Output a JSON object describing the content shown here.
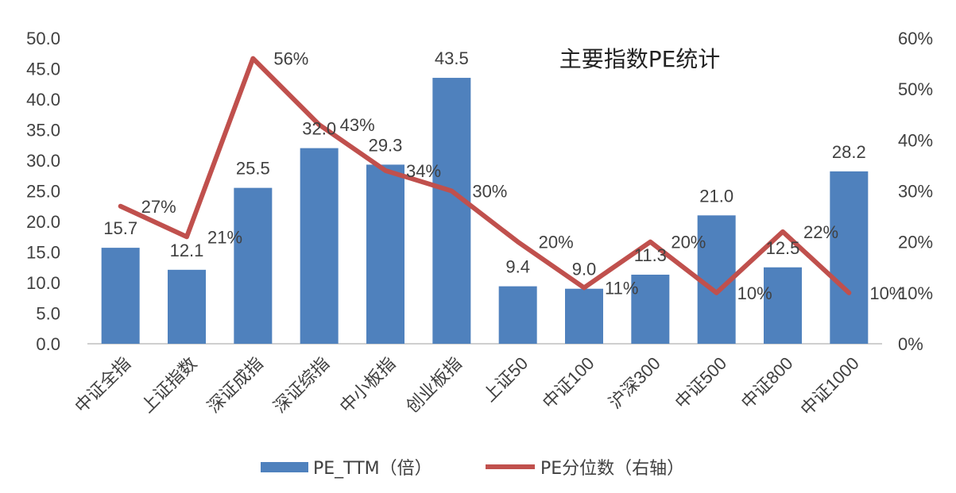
{
  "chart_data": {
    "type": "bar+line",
    "title": "主要指数PE统计",
    "categories": [
      "中证全指",
      "上证指数",
      "深证成指",
      "深证综指",
      "中小板指",
      "创业板指",
      "上证50",
      "中证100",
      "沪深300",
      "中证500",
      "中证800",
      "中证1000"
    ],
    "series": [
      {
        "name": "PE_TTM（倍）",
        "type": "bar",
        "axis": "left",
        "color": "#4F81BD",
        "values": [
          15.7,
          12.1,
          25.5,
          32.0,
          29.3,
          43.5,
          9.4,
          9.0,
          11.3,
          21.0,
          12.5,
          28.2
        ],
        "labels": [
          "15.7",
          "12.1",
          "25.5",
          "32.0",
          "29.3",
          "43.5",
          "9.4",
          "9.0",
          "11.3",
          "21.0",
          "12.5",
          "28.2"
        ]
      },
      {
        "name": "PE分位数（右轴）",
        "type": "line",
        "axis": "right",
        "color": "#C0504D",
        "values": [
          27,
          21,
          56,
          43,
          34,
          30,
          20,
          11,
          20,
          10,
          22,
          10
        ],
        "labels": [
          "27%",
          "21%",
          "56%",
          "43%",
          "34%",
          "30%",
          "20%",
          "11%",
          "20%",
          "10%",
          "22%",
          "10%"
        ]
      }
    ],
    "y_left": {
      "min": 0,
      "max": 50,
      "ticks": [
        "0.0",
        "5.0",
        "10.0",
        "15.0",
        "20.0",
        "25.0",
        "30.0",
        "35.0",
        "40.0",
        "45.0",
        "50.0"
      ]
    },
    "y_right": {
      "min": 0,
      "max": 60,
      "ticks": [
        "0%",
        "10%",
        "20%",
        "30%",
        "40%",
        "50%",
        "60%"
      ]
    },
    "grid": false,
    "legend_position": "bottom"
  }
}
